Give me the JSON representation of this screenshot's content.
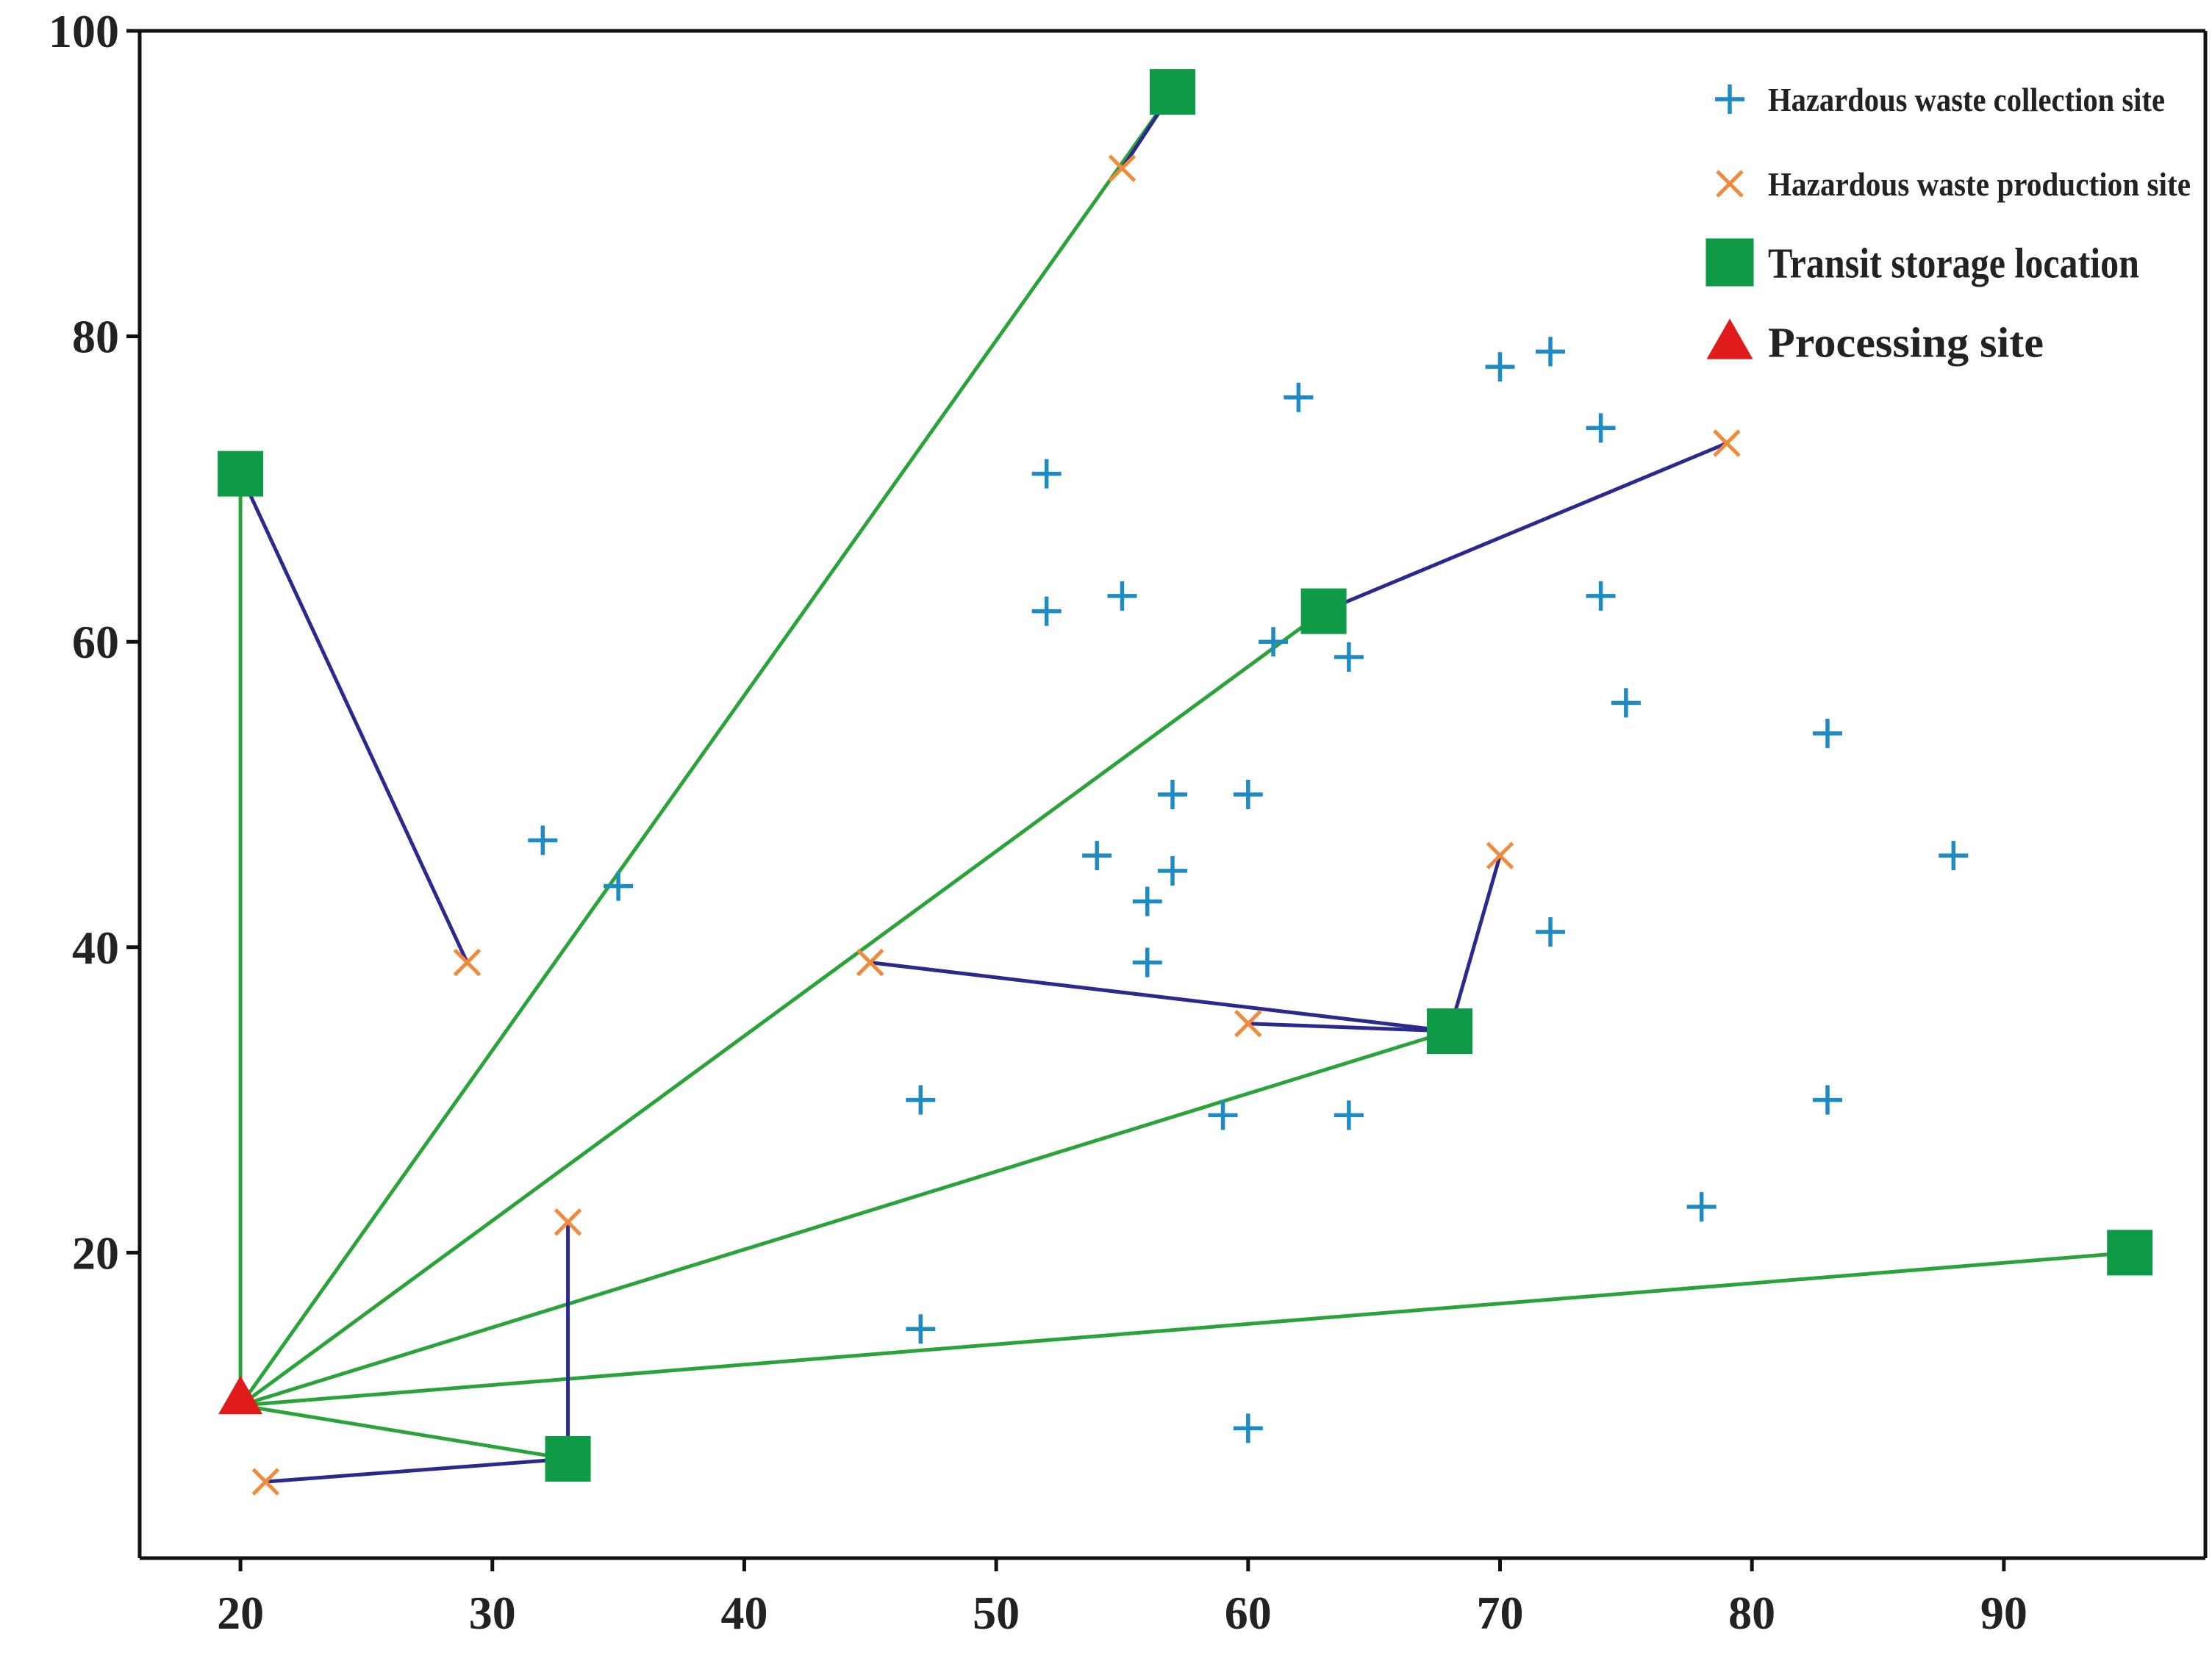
{
  "chart_data": {
    "type": "scatter",
    "title": "",
    "xlabel": "",
    "ylabel": "",
    "xlim": [
      16,
      98
    ],
    "ylim": [
      0,
      100
    ],
    "xticks": [
      20,
      30,
      40,
      50,
      60,
      70,
      80,
      90
    ],
    "yticks": [
      20,
      40,
      60,
      80,
      100
    ],
    "legend_position": "top-right",
    "colors": {
      "collection": "#1f8bc4",
      "production": "#f08a3c",
      "transit": "#0f9a48",
      "processing": "#e01b1b",
      "green_route": "#2aa33a",
      "blue_route": "#2b2a8c",
      "axis": "#111111"
    },
    "legend": [
      {
        "key": "collection",
        "label": "Hazardous waste collection site",
        "marker": "plus"
      },
      {
        "key": "production",
        "label": "Hazardous waste production site",
        "marker": "x"
      },
      {
        "key": "transit",
        "label": "Transit storage location",
        "marker": "square"
      },
      {
        "key": "processing",
        "label": "Processing site",
        "marker": "triangle"
      }
    ],
    "series": [
      {
        "name": "Hazardous waste collection site",
        "marker": "plus",
        "points": [
          [
            32,
            47
          ],
          [
            35,
            44
          ],
          [
            47,
            30
          ],
          [
            47,
            15
          ],
          [
            52,
            71
          ],
          [
            52,
            62
          ],
          [
            54,
            46
          ],
          [
            55,
            63
          ],
          [
            56,
            43
          ],
          [
            56,
            39
          ],
          [
            57,
            50
          ],
          [
            57,
            45
          ],
          [
            59,
            29
          ],
          [
            60,
            50
          ],
          [
            60,
            8.5
          ],
          [
            61,
            60
          ],
          [
            62,
            76
          ],
          [
            64,
            59
          ],
          [
            64,
            29
          ],
          [
            70,
            78
          ],
          [
            72,
            79
          ],
          [
            72,
            41
          ],
          [
            74,
            74
          ],
          [
            74,
            63
          ],
          [
            75,
            56
          ],
          [
            78,
            23
          ],
          [
            83,
            54
          ],
          [
            83,
            30
          ],
          [
            88,
            46
          ]
        ]
      },
      {
        "name": "Hazardous waste production site",
        "marker": "x",
        "points": [
          [
            21,
            5
          ],
          [
            29,
            39
          ],
          [
            33,
            22
          ],
          [
            45,
            39
          ],
          [
            55,
            91
          ],
          [
            60,
            35
          ],
          [
            70,
            46
          ],
          [
            79,
            73
          ]
        ]
      },
      {
        "name": "Transit storage location",
        "marker": "square",
        "points": [
          [
            20,
            71
          ],
          [
            33,
            6.5
          ],
          [
            57,
            96
          ],
          [
            63,
            62
          ],
          [
            68,
            34.5
          ],
          [
            95,
            20
          ]
        ]
      },
      {
        "name": "Processing site",
        "marker": "triangle",
        "points": [
          [
            20,
            10.5
          ]
        ]
      }
    ],
    "routes": [
      {
        "color": "green",
        "from": [
          20,
          10
        ],
        "to": [
          57,
          96
        ]
      },
      {
        "color": "green",
        "from": [
          20,
          10
        ],
        "to": [
          63,
          62
        ]
      },
      {
        "color": "green",
        "from": [
          20,
          10
        ],
        "to": [
          68,
          34.5
        ]
      },
      {
        "color": "green",
        "from": [
          20,
          10
        ],
        "to": [
          95,
          20
        ]
      },
      {
        "color": "green",
        "from": [
          20,
          10
        ],
        "to": [
          33,
          6.5
        ]
      },
      {
        "color": "green",
        "from": [
          20,
          10
        ],
        "to": [
          20,
          71
        ]
      },
      {
        "color": "blue",
        "from": [
          20,
          71
        ],
        "to": [
          29,
          39
        ]
      },
      {
        "color": "blue",
        "from": [
          57,
          96
        ],
        "to": [
          55,
          91
        ]
      },
      {
        "color": "blue",
        "from": [
          63,
          62
        ],
        "to": [
          79,
          73
        ]
      },
      {
        "color": "blue",
        "from": [
          68,
          34.5
        ],
        "to": [
          70,
          46
        ]
      },
      {
        "color": "blue",
        "from": [
          68,
          34.5
        ],
        "to": [
          45,
          39
        ]
      },
      {
        "color": "blue",
        "from": [
          68,
          34.5
        ],
        "to": [
          60,
          35
        ]
      },
      {
        "color": "blue",
        "from": [
          33,
          6.5
        ],
        "to": [
          33,
          22
        ]
      },
      {
        "color": "blue",
        "from": [
          33,
          6.5
        ],
        "to": [
          21,
          5
        ]
      }
    ]
  }
}
